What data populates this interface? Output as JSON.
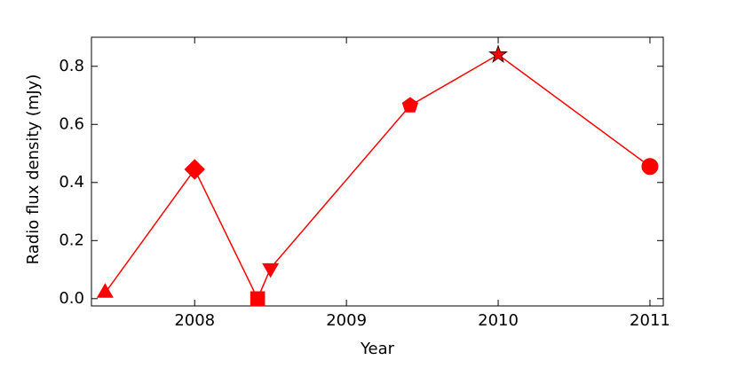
{
  "chart_data": {
    "type": "line",
    "xlabel": "Year",
    "ylabel": "Radio flux density (mJy)",
    "x": [
      2007.41,
      2008.0,
      2008.415,
      2008.5,
      2009.42,
      2010.0,
      2011.0
    ],
    "series": [
      {
        "color": "#ff0000",
        "values": [
          0.02,
          0.445,
          0.0,
          0.105,
          0.665,
          0.84,
          0.455
        ],
        "markers": [
          "triangle-up",
          "diamond",
          "square",
          "triangle-down",
          "pentagon",
          "star",
          "circle"
        ]
      }
    ],
    "xlim": [
      2007.32,
      2011.088
    ],
    "xticks": [
      2008,
      2009,
      2010,
      2011
    ],
    "ylim": [
      -0.025,
      0.9
    ],
    "yticks": [
      {
        "value": 0,
        "label": "0.0"
      },
      0.2,
      0.4,
      0.6,
      0.8
    ],
    "grid": false
  }
}
